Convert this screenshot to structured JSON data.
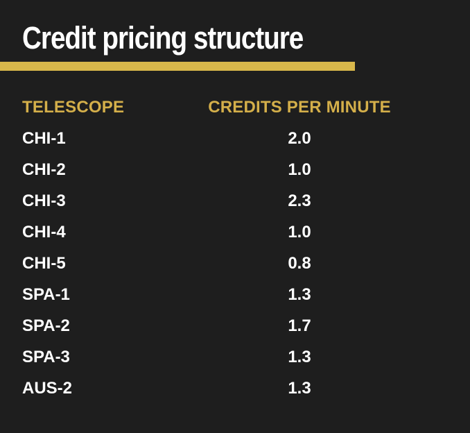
{
  "title": "Credit pricing structure",
  "colors": {
    "background": "#1e1e1e",
    "accent": "#d8b74b",
    "header_text": "#d4af4a",
    "text": "#ffffff"
  },
  "table": {
    "headers": {
      "telescope": "TELESCOPE",
      "credits": "CREDITS PER MINUTE"
    },
    "rows": [
      {
        "telescope": "CHI-1",
        "credits": "2.0"
      },
      {
        "telescope": "CHI-2",
        "credits": "1.0"
      },
      {
        "telescope": "CHI-3",
        "credits": "2.3"
      },
      {
        "telescope": "CHI-4",
        "credits": "1.0"
      },
      {
        "telescope": "CHI-5",
        "credits": "0.8"
      },
      {
        "telescope": "SPA-1",
        "credits": "1.3"
      },
      {
        "telescope": "SPA-2",
        "credits": "1.7"
      },
      {
        "telescope": "SPA-3",
        "credits": "1.3"
      },
      {
        "telescope": "AUS-2",
        "credits": "1.3"
      }
    ]
  }
}
